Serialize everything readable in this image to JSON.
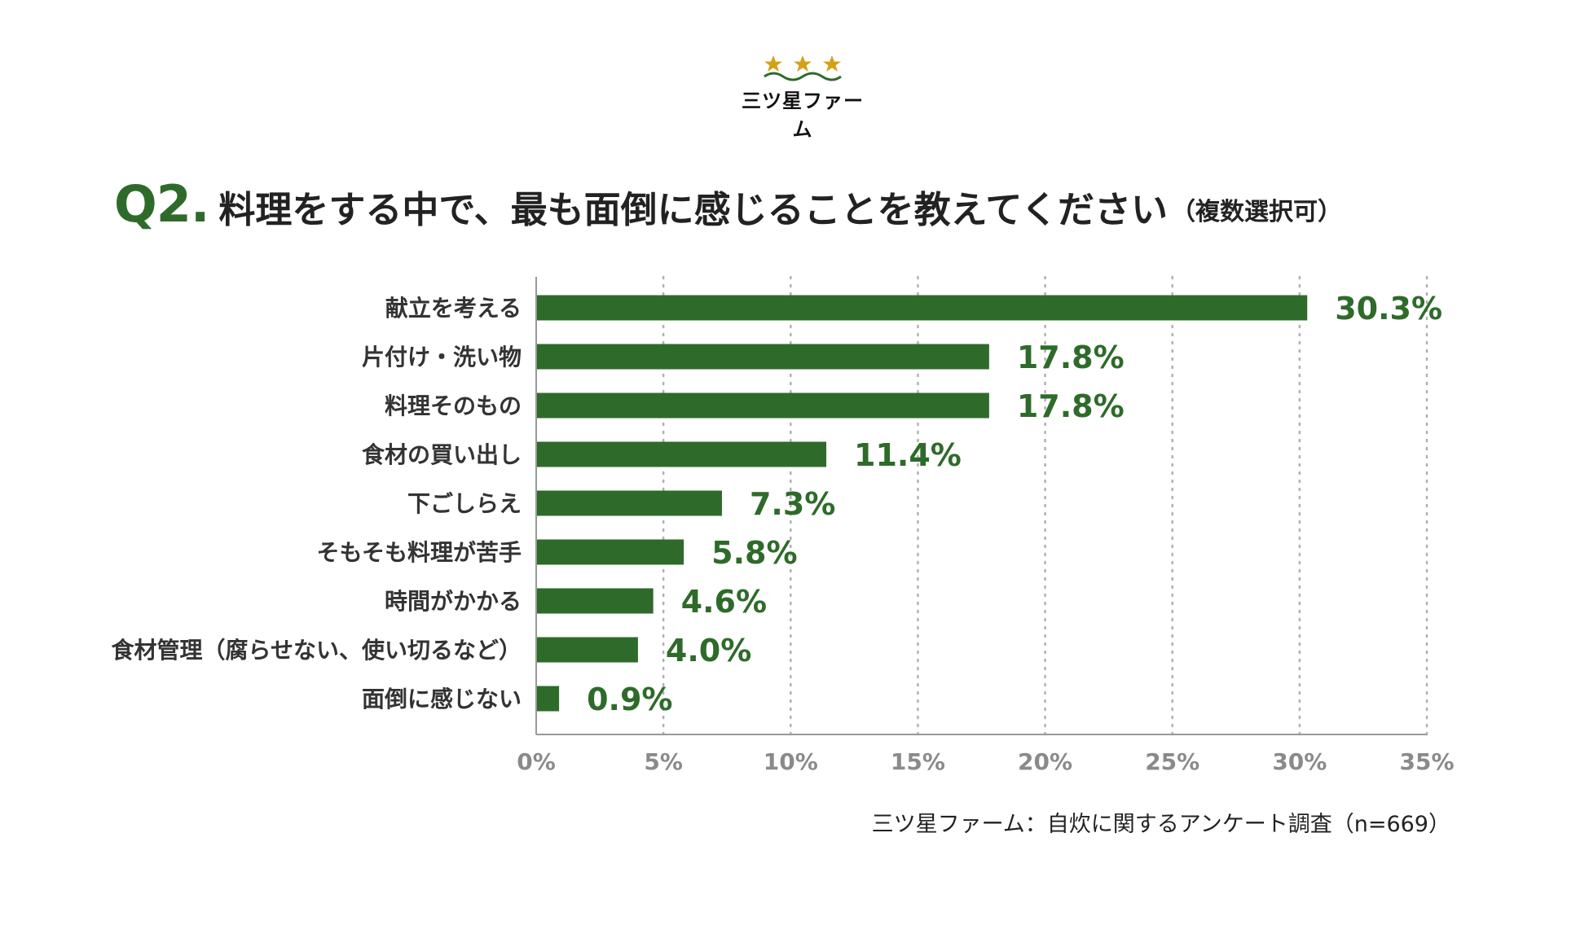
{
  "logo": {
    "name": "三ツ星ファーム",
    "icon": "three-stars-logo",
    "colors": {
      "star": "#d4a017",
      "wave": "#2e6b2a"
    }
  },
  "question": {
    "label": "Q2.",
    "text": "料理をする中で、最も面倒に感じることを教えてください",
    "note": "（複数選択可）"
  },
  "source": "三ツ星ファーム：自炊に関するアンケート調査（n=669）",
  "colors": {
    "bar": "#2e6b2a",
    "value": "#2e6b2a",
    "axis": "#999999",
    "grid": "#b0b0b0",
    "tick": "#8a8a8a"
  },
  "chart_data": {
    "type": "bar",
    "orientation": "horizontal",
    "title": "Q2. 料理をする中で、最も面倒に感じることを教えてください（複数選択可）",
    "categories": [
      "献立を考える",
      "片付け・洗い物",
      "料理そのもの",
      "食材の買い出し",
      "下ごしらえ",
      "そもそも料理が苦手",
      "時間がかかる",
      "食材管理（腐らせない、使い切るなど）",
      "面倒に感じない"
    ],
    "values": [
      30.3,
      17.8,
      17.8,
      11.4,
      7.3,
      5.8,
      4.6,
      4.0,
      0.9
    ],
    "value_labels": [
      "30.3%",
      "17.8%",
      "17.8%",
      "11.4%",
      "7.3%",
      "5.8%",
      "4.6%",
      "4.0%",
      "0.9%"
    ],
    "xlim": [
      0,
      35
    ],
    "xticks": [
      0,
      5,
      10,
      15,
      20,
      25,
      30,
      35
    ],
    "xtick_labels": [
      "0%",
      "5%",
      "10%",
      "15%",
      "20%",
      "25%",
      "30%",
      "35%"
    ],
    "grid": "vertical dotted",
    "xlabel": "",
    "ylabel": ""
  }
}
